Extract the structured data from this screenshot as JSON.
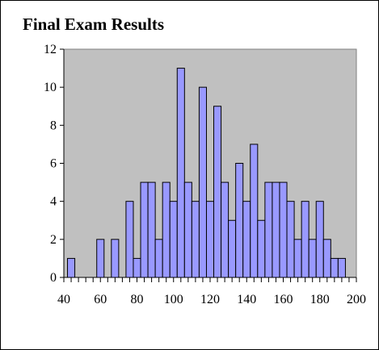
{
  "chart_data": {
    "type": "bar",
    "title": "Final Exam Results",
    "xlabel": "",
    "ylabel": "",
    "xlim": [
      40,
      200
    ],
    "ylim": [
      0,
      12
    ],
    "xticks": [
      40,
      60,
      80,
      100,
      120,
      140,
      160,
      180,
      200
    ],
    "yticks": [
      0,
      2,
      4,
      6,
      8,
      10,
      12
    ],
    "bin_width": 4,
    "bins": [
      {
        "x": 44,
        "value": 1
      },
      {
        "x": 48,
        "value": 0
      },
      {
        "x": 52,
        "value": 0
      },
      {
        "x": 56,
        "value": 0
      },
      {
        "x": 60,
        "value": 2
      },
      {
        "x": 64,
        "value": 0
      },
      {
        "x": 68,
        "value": 2
      },
      {
        "x": 72,
        "value": 0
      },
      {
        "x": 76,
        "value": 4
      },
      {
        "x": 80,
        "value": 1
      },
      {
        "x": 84,
        "value": 5
      },
      {
        "x": 88,
        "value": 5
      },
      {
        "x": 92,
        "value": 2
      },
      {
        "x": 96,
        "value": 5
      },
      {
        "x": 100,
        "value": 4
      },
      {
        "x": 104,
        "value": 11
      },
      {
        "x": 108,
        "value": 5
      },
      {
        "x": 112,
        "value": 4
      },
      {
        "x": 116,
        "value": 10
      },
      {
        "x": 120,
        "value": 4
      },
      {
        "x": 124,
        "value": 9
      },
      {
        "x": 128,
        "value": 5
      },
      {
        "x": 132,
        "value": 3
      },
      {
        "x": 136,
        "value": 6
      },
      {
        "x": 140,
        "value": 4
      },
      {
        "x": 144,
        "value": 7
      },
      {
        "x": 148,
        "value": 3
      },
      {
        "x": 152,
        "value": 5
      },
      {
        "x": 156,
        "value": 5
      },
      {
        "x": 160,
        "value": 5
      },
      {
        "x": 164,
        "value": 4
      },
      {
        "x": 168,
        "value": 2
      },
      {
        "x": 172,
        "value": 4
      },
      {
        "x": 176,
        "value": 2
      },
      {
        "x": 180,
        "value": 4
      },
      {
        "x": 184,
        "value": 2
      },
      {
        "x": 188,
        "value": 1
      },
      {
        "x": 192,
        "value": 1
      },
      {
        "x": 196,
        "value": 0
      }
    ],
    "grid": false,
    "legend": "none",
    "colors": {
      "plot_background": "#c0c0c0",
      "bar_fill": "#9999ff",
      "bar_stroke": "#000000"
    }
  }
}
